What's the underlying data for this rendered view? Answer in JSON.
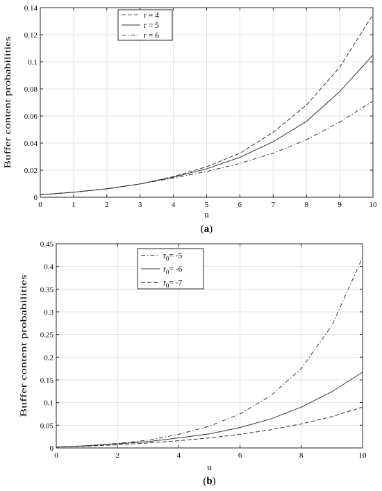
{
  "chart_data": [
    {
      "type": "line",
      "caption": "(a)",
      "caption_letter": "a",
      "xlabel": "u",
      "ylabel": "Buffer content probabilities",
      "xlim": [
        0,
        10
      ],
      "ylim": [
        0,
        0.14
      ],
      "xticks": [
        0,
        1,
        2,
        3,
        4,
        5,
        6,
        7,
        8,
        9,
        10
      ],
      "xtick_labels": [
        "0",
        "1",
        "2",
        "3",
        "4",
        "5",
        "6",
        "7",
        "8",
        "9",
        "10"
      ],
      "yticks": [
        0,
        0.02,
        0.04,
        0.06,
        0.08,
        0.1,
        0.12,
        0.14
      ],
      "ytick_labels": [
        "0",
        "0.02",
        "0.04",
        "0.06",
        "0.08",
        "0.1",
        "0.12",
        "0.14"
      ],
      "grid": true,
      "legend_position": "top-center-left",
      "x": [
        0,
        1,
        2,
        3,
        4,
        5,
        6,
        7,
        8,
        9,
        10
      ],
      "series": [
        {
          "name": "r = 4",
          "dash": "dashed",
          "values": [
            0.0018,
            0.0037,
            0.0062,
            0.0098,
            0.0152,
            0.0225,
            0.0325,
            0.048,
            0.068,
            0.096,
            0.135
          ]
        },
        {
          "name": "r = 5",
          "dash": "solid",
          "values": [
            0.0018,
            0.0037,
            0.0062,
            0.0098,
            0.0148,
            0.021,
            0.0295,
            0.041,
            0.056,
            0.078,
            0.105
          ]
        },
        {
          "name": "r = 6",
          "dash": "dashdot",
          "values": [
            0.0018,
            0.0037,
            0.0062,
            0.0098,
            0.0142,
            0.019,
            0.025,
            0.0325,
            0.0425,
            0.0555,
            0.071
          ]
        }
      ]
    },
    {
      "type": "line",
      "caption": "(b)",
      "caption_letter": "b",
      "xlabel": "u",
      "ylabel": "Buffer content probabilities",
      "xlim": [
        0,
        10
      ],
      "ylim": [
        0,
        0.45
      ],
      "xticks": [
        0,
        2,
        4,
        6,
        8,
        10
      ],
      "xtick_labels": [
        "0",
        "2",
        "4",
        "6",
        "8",
        "10"
      ],
      "yticks": [
        0,
        0.05,
        0.1,
        0.15,
        0.2,
        0.25,
        0.3,
        0.35,
        0.4,
        0.45
      ],
      "ytick_labels": [
        "0",
        "0.05",
        "0.1",
        "0.15",
        "0.2",
        "0.25",
        "0.3",
        "0.35",
        "0.4",
        "0.45"
      ],
      "grid": true,
      "legend_position": "top-center-left",
      "x": [
        0,
        1,
        2,
        3,
        4,
        5,
        6,
        7,
        8,
        9,
        10
      ],
      "series": [
        {
          "name_base": "r",
          "name_sub": "0",
          "name_rest": "= -5",
          "dash": "dashdot",
          "values": [
            0.002,
            0.005,
            0.01,
            0.017,
            0.03,
            0.048,
            0.075,
            0.115,
            0.175,
            0.27,
            0.42
          ]
        },
        {
          "name_base": "r",
          "name_sub": "0",
          "name_rest": "= -6",
          "dash": "solid",
          "values": [
            0.002,
            0.005,
            0.009,
            0.014,
            0.022,
            0.031,
            0.045,
            0.064,
            0.09,
            0.124,
            0.167
          ]
        },
        {
          "name_base": "r",
          "name_sub": "0",
          "name_rest": "= -7",
          "dash": "dashed",
          "values": [
            0.002,
            0.004,
            0.007,
            0.011,
            0.016,
            0.022,
            0.03,
            0.04,
            0.053,
            0.069,
            0.09
          ]
        }
      ]
    }
  ]
}
